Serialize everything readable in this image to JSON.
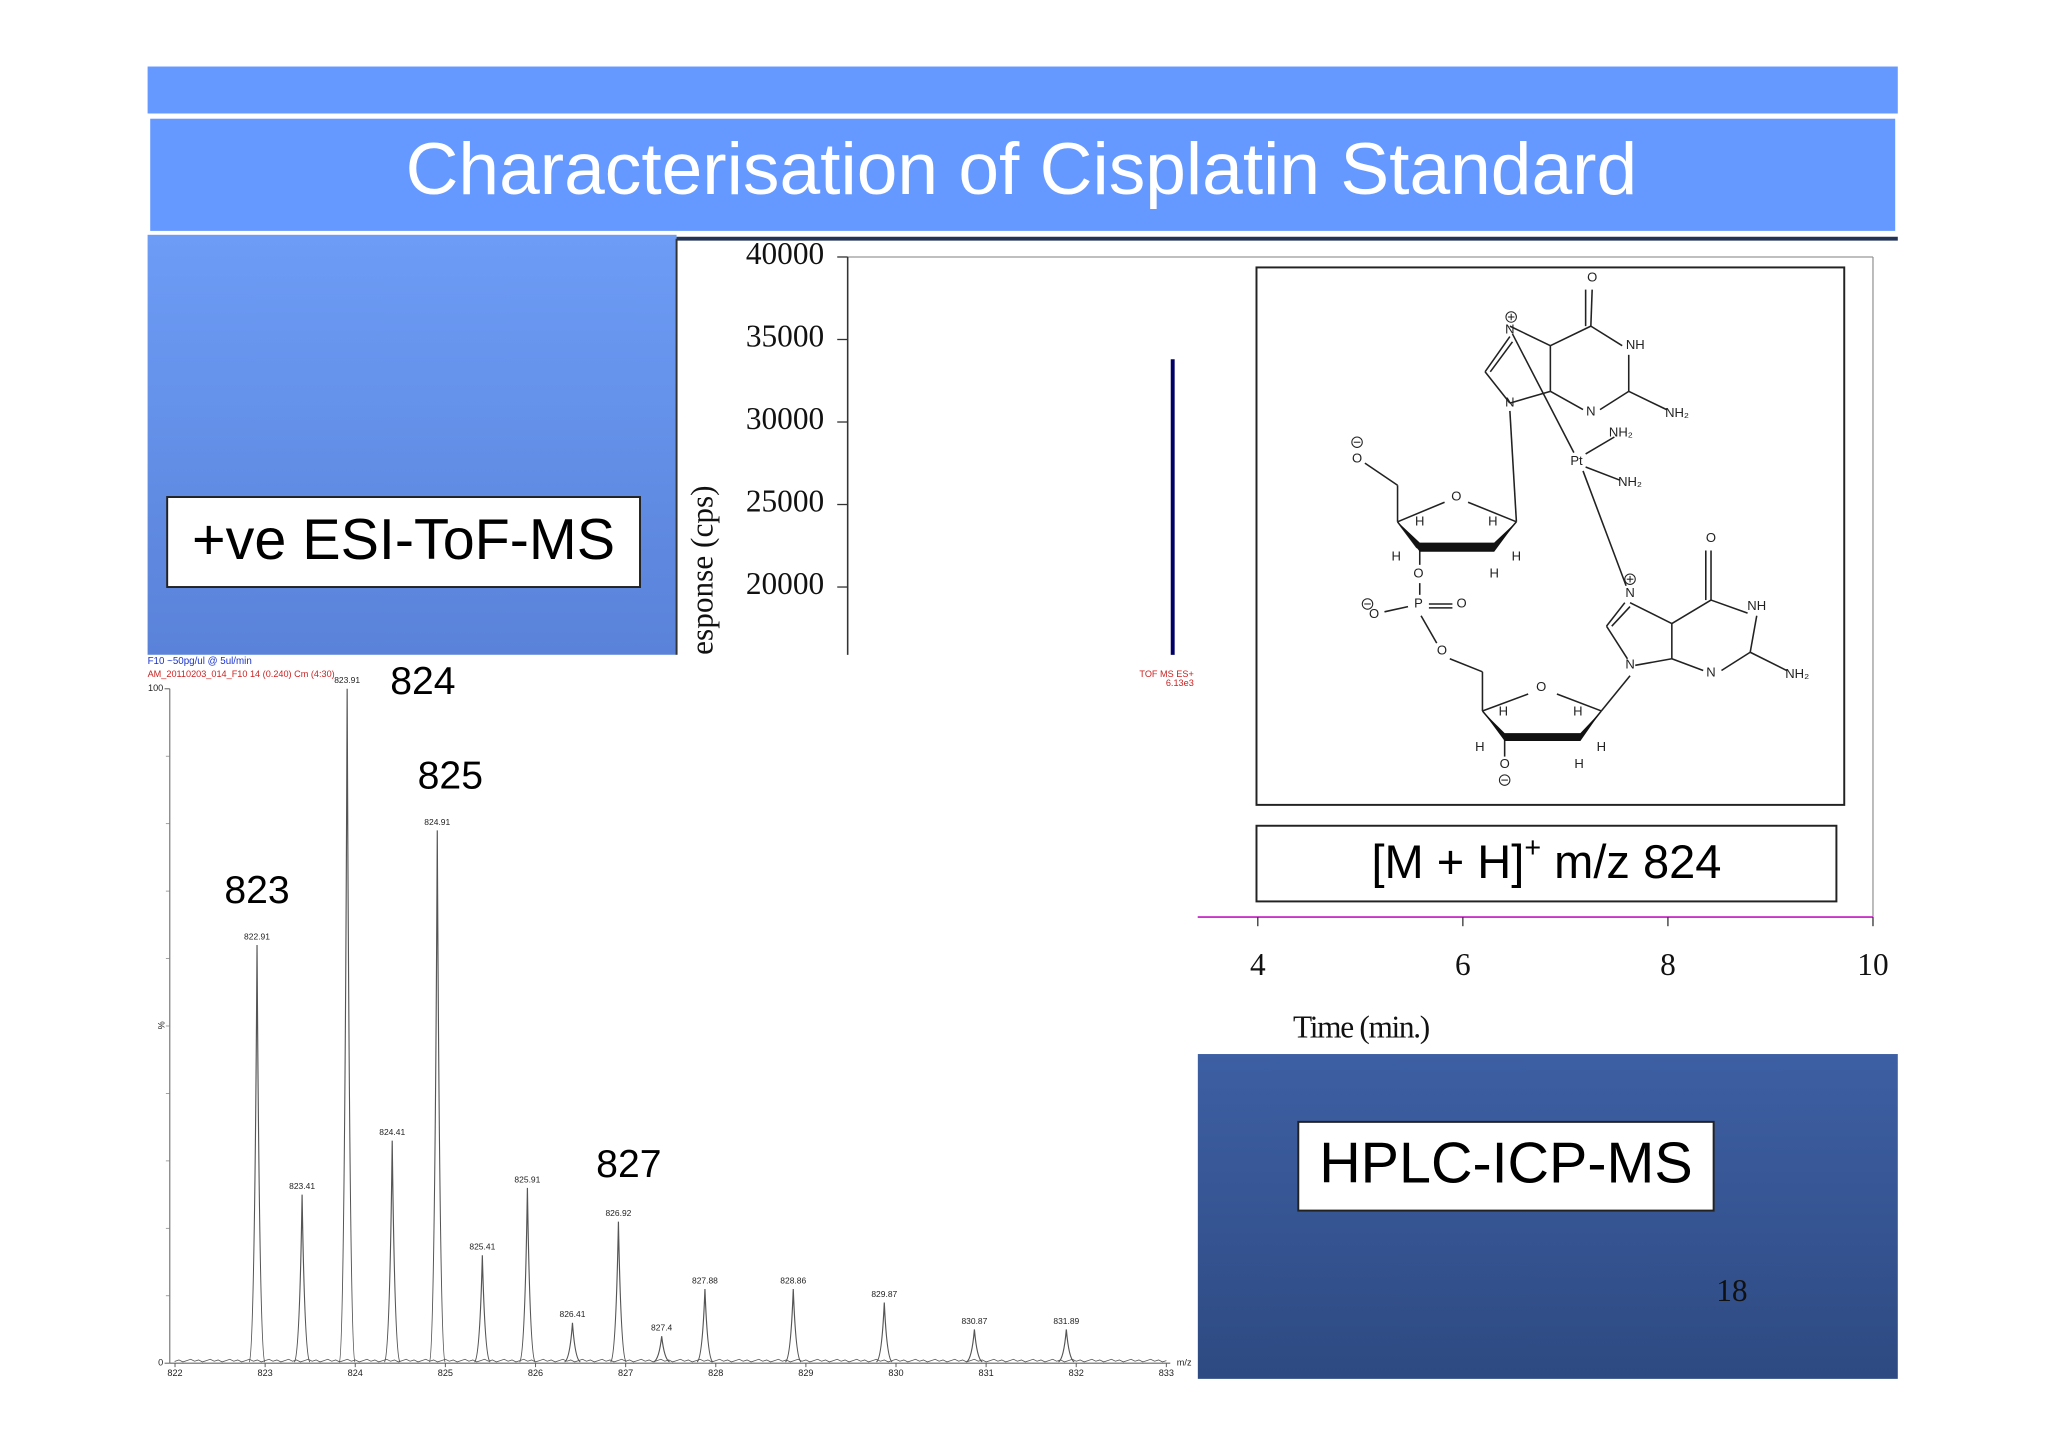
{
  "title": "Characterisation of Cisplatin Standard",
  "esi_label": "+ve ESI-ToF-MS",
  "hplc_label": "HPLC-ICP-MS",
  "ion_label": {
    "prefix": "[M + H]",
    "sup": "+",
    "suffix": " m/z 824"
  },
  "page_number": "18",
  "structure": {
    "atoms": [
      "O",
      "N",
      "NH",
      "N",
      "N",
      "NH₂",
      "Pt",
      "NH₂",
      "NH₂",
      "O",
      "H",
      "H",
      "H",
      "H",
      "H",
      "O",
      "O",
      "P",
      "O",
      "O",
      "O",
      "O",
      "N",
      "NH",
      "N",
      "N",
      "NH₂",
      "O",
      "H",
      "H",
      "H",
      "H",
      "O",
      "H"
    ]
  },
  "chart_data": [
    {
      "type": "spectrum",
      "header": [
        "F10 ~50pg/ul @ 5ul/min",
        "AM_20110203_014_F10 14 (0.240) Cm (4:30)"
      ],
      "instrument": "TOF MS ES+",
      "intensity": "6.13e3",
      "xlabel": "m/z",
      "ylabel": "%",
      "xlim": [
        822,
        833
      ],
      "xticks": [
        822,
        823,
        824,
        825,
        826,
        827,
        828,
        829,
        830,
        831,
        832,
        833
      ],
      "ylim": [
        0,
        100
      ],
      "yticks": [
        0,
        100
      ],
      "color": "#555555",
      "x": [
        822.91,
        823.41,
        823.91,
        824.41,
        824.91,
        825.41,
        825.91,
        826.41,
        826.92,
        827.4,
        827.88,
        828.86,
        829.87,
        830.87,
        831.89
      ],
      "values": [
        62,
        25,
        100,
        33,
        79,
        16,
        26,
        6,
        21,
        4,
        11,
        11,
        9,
        5,
        5
      ],
      "annotations": [
        {
          "text": "823",
          "x": 822.91
        },
        {
          "text": "824",
          "x": 823.91
        },
        {
          "text": "825",
          "x": 824.91
        },
        {
          "text": "827",
          "x": 826.92
        }
      ]
    },
    {
      "type": "line",
      "xlabel": "Time (min.)",
      "ylabel": "esponse (cps)",
      "xlim": [
        0,
        10
      ],
      "xticks": [
        4,
        6,
        8,
        10
      ],
      "ylim": [
        0,
        40000
      ],
      "yticks": [
        20000,
        25000,
        30000,
        35000,
        40000
      ],
      "series": [
        {
          "color": "#000066",
          "x": [
            3.17
          ],
          "values": [
            33800
          ]
        }
      ]
    }
  ]
}
